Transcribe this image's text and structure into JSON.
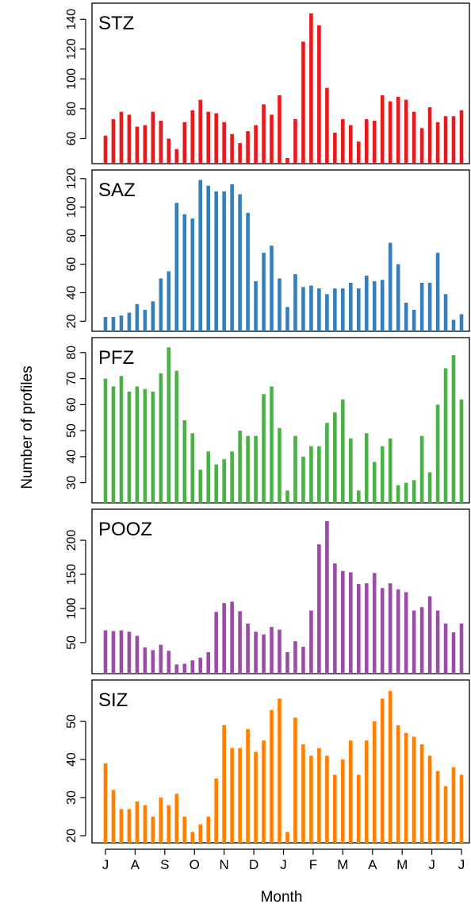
{
  "ylabel": "Number of profiles",
  "xlabel": "Month",
  "month_labels": [
    "J",
    "A",
    "S",
    "O",
    "N",
    "D",
    "J",
    "F",
    "M",
    "A",
    "M",
    "J",
    "J"
  ],
  "colors": {
    "STZ": "#e41a1c",
    "SAZ": "#377eb8",
    "PFZ": "#4daf4a",
    "POOZ": "#984ea3",
    "SIZ": "#ff7f00"
  },
  "chart_data": [
    {
      "type": "bar",
      "title": "STZ",
      "color": "#e41a1c",
      "ylim": [
        48,
        146
      ],
      "yticks": [
        60,
        80,
        100,
        120,
        140
      ],
      "values": [
        62,
        73,
        78,
        76,
        68,
        69,
        78,
        72,
        60,
        53,
        71,
        79,
        86,
        78,
        77,
        71,
        63,
        57,
        65,
        69,
        83,
        76,
        89,
        47,
        73,
        125,
        144,
        136,
        94,
        64,
        73,
        69,
        58,
        73,
        72,
        89,
        85,
        88,
        86,
        78,
        67,
        81,
        71,
        75,
        75,
        79
      ]
    },
    {
      "type": "bar",
      "title": "SAZ",
      "color": "#377eb8",
      "ylim": [
        18,
        121
      ],
      "yticks": [
        20,
        40,
        60,
        80,
        100,
        120
      ],
      "values": [
        23,
        23,
        24,
        26,
        32,
        28,
        34,
        50,
        55,
        103,
        95,
        92,
        119,
        115,
        111,
        111,
        116,
        109,
        96,
        48,
        68,
        73,
        50,
        30,
        53,
        44,
        45,
        43,
        39,
        43,
        43,
        47,
        43,
        52,
        48,
        49,
        75,
        60,
        33,
        28,
        47,
        47,
        68,
        39,
        21,
        25
      ]
    },
    {
      "type": "bar",
      "title": "PFZ",
      "color": "#4daf4a",
      "ylim": [
        25,
        83
      ],
      "yticks": [
        30,
        40,
        50,
        60,
        70,
        80
      ],
      "values": [
        70,
        67,
        71,
        65,
        67,
        66,
        65,
        72,
        82,
        73,
        54,
        49,
        35,
        42,
        37,
        39,
        42,
        50,
        48,
        48,
        64,
        67,
        51,
        27,
        48,
        40,
        44,
        44,
        53,
        57,
        62,
        47,
        27,
        49,
        38,
        44,
        47,
        29,
        30,
        31,
        48,
        34,
        60,
        74,
        79,
        62
      ]
    },
    {
      "type": "bar",
      "title": "POOZ",
      "color": "#984ea3",
      "ylim": [
        15,
        235
      ],
      "yticks": [
        50,
        100,
        150,
        200
      ],
      "values": [
        68,
        67,
        68,
        66,
        60,
        43,
        39,
        47,
        38,
        18,
        19,
        24,
        28,
        36,
        95,
        108,
        110,
        96,
        78,
        66,
        62,
        73,
        69,
        36,
        52,
        44,
        97,
        194,
        228,
        166,
        155,
        153,
        136,
        137,
        152,
        130,
        137,
        128,
        124,
        97,
        102,
        118,
        97,
        78,
        65,
        78
      ]
    },
    {
      "type": "bar",
      "title": "SIZ",
      "color": "#ff7f00",
      "ylim": [
        20,
        59
      ],
      "yticks": [
        20,
        30,
        40,
        50
      ],
      "values": [
        39,
        32,
        27,
        27,
        29,
        28,
        25,
        30,
        28,
        31,
        25,
        21,
        23,
        25,
        35,
        49,
        43,
        43,
        48,
        42,
        45,
        53,
        56,
        21,
        51,
        44,
        41,
        43,
        41,
        36,
        40,
        45,
        36,
        45,
        50,
        56,
        58,
        49,
        47,
        46,
        44,
        41,
        37,
        33,
        38,
        36
      ]
    }
  ]
}
